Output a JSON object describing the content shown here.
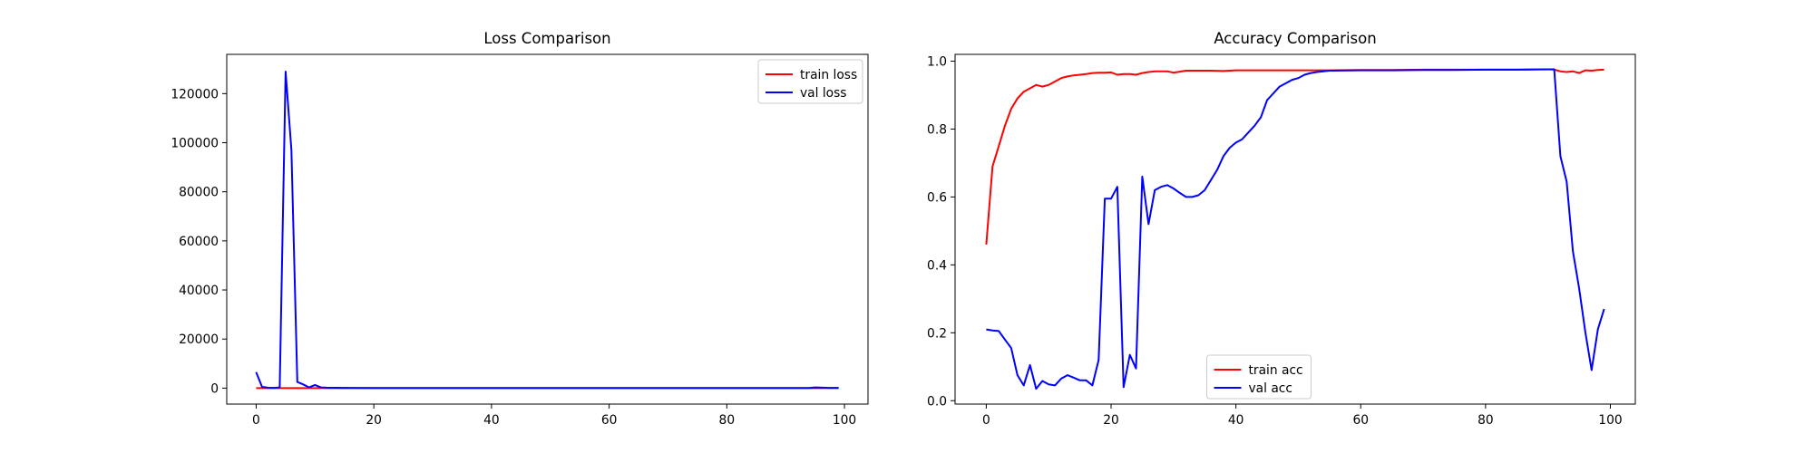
{
  "chart_data": [
    {
      "type": "line",
      "title": "Loss Comparison",
      "xlabel": "",
      "ylabel": "",
      "xlim": [
        -5,
        104
      ],
      "ylim": [
        -6500,
        136000
      ],
      "xticks": [
        0,
        20,
        40,
        60,
        80,
        100
      ],
      "yticks": [
        0,
        20000,
        40000,
        60000,
        80000,
        100000,
        120000
      ],
      "grid": false,
      "legend_position": "upper right",
      "series": [
        {
          "name": "train loss",
          "color": "#ff0000",
          "x": [
            0,
            99
          ],
          "y": [
            0,
            0
          ]
        },
        {
          "name": "val loss",
          "color": "#0000ff",
          "x": [
            0,
            1,
            2,
            3,
            4,
            5,
            6,
            7,
            8,
            9,
            10,
            11,
            12,
            15,
            20,
            30,
            40,
            50,
            60,
            70,
            80,
            90,
            93,
            94,
            95,
            97,
            99
          ],
          "y": [
            6500,
            500,
            200,
            100,
            300,
            129000,
            97000,
            2500,
            1500,
            300,
            1300,
            300,
            200,
            100,
            50,
            50,
            50,
            50,
            50,
            50,
            50,
            50,
            50,
            80,
            300,
            150,
            100
          ]
        }
      ]
    },
    {
      "type": "line",
      "title": "Accuracy Comparison",
      "xlabel": "",
      "ylabel": "",
      "xlim": [
        -5,
        104
      ],
      "ylim": [
        -0.01,
        1.02
      ],
      "xticks": [
        0,
        20,
        40,
        60,
        80,
        100
      ],
      "yticks": [
        0.0,
        0.2,
        0.4,
        0.6,
        0.8,
        1.0
      ],
      "grid": false,
      "legend_position": "lower center",
      "series": [
        {
          "name": "train acc",
          "color": "#ff0000",
          "x": [
            0,
            1,
            2,
            3,
            4,
            5,
            6,
            7,
            8,
            9,
            10,
            11,
            12,
            13,
            14,
            15,
            16,
            17,
            18,
            19,
            20,
            21,
            22,
            23,
            24,
            25,
            26,
            27,
            28,
            29,
            30,
            32,
            34,
            36,
            38,
            40,
            45,
            50,
            55,
            60,
            65,
            70,
            75,
            80,
            85,
            90,
            91,
            92,
            93,
            94,
            95,
            96,
            97,
            98,
            99
          ],
          "y": [
            0.46,
            0.69,
            0.75,
            0.81,
            0.86,
            0.89,
            0.91,
            0.92,
            0.93,
            0.925,
            0.93,
            0.94,
            0.95,
            0.955,
            0.958,
            0.96,
            0.962,
            0.965,
            0.966,
            0.966,
            0.967,
            0.96,
            0.962,
            0.962,
            0.96,
            0.965,
            0.968,
            0.97,
            0.97,
            0.97,
            0.966,
            0.972,
            0.972,
            0.972,
            0.971,
            0.973,
            0.973,
            0.973,
            0.973,
            0.974,
            0.974,
            0.975,
            0.975,
            0.975,
            0.975,
            0.976,
            0.975,
            0.97,
            0.968,
            0.97,
            0.965,
            0.973,
            0.972,
            0.974,
            0.975
          ]
        },
        {
          "name": "val acc",
          "color": "#0000ff",
          "x": [
            0,
            1,
            2,
            3,
            4,
            5,
            6,
            7,
            8,
            9,
            10,
            11,
            12,
            13,
            14,
            15,
            16,
            17,
            18,
            19,
            20,
            21,
            22,
            23,
            24,
            25,
            26,
            27,
            28,
            29,
            30,
            31,
            32,
            33,
            34,
            35,
            36,
            37,
            38,
            39,
            40,
            41,
            42,
            43,
            44,
            45,
            46,
            47,
            48,
            49,
            50,
            51,
            52,
            53,
            54,
            55,
            60,
            65,
            70,
            75,
            80,
            85,
            90,
            91,
            92,
            93,
            94,
            95,
            96,
            97,
            98,
            99
          ],
          "y": [
            0.21,
            0.207,
            0.205,
            0.18,
            0.155,
            0.075,
            0.045,
            0.105,
            0.035,
            0.058,
            0.048,
            0.045,
            0.065,
            0.075,
            0.068,
            0.06,
            0.06,
            0.045,
            0.12,
            0.595,
            0.595,
            0.63,
            0.04,
            0.135,
            0.095,
            0.66,
            0.52,
            0.62,
            0.63,
            0.635,
            0.625,
            0.612,
            0.6,
            0.6,
            0.605,
            0.62,
            0.65,
            0.68,
            0.72,
            0.745,
            0.76,
            0.77,
            0.79,
            0.81,
            0.835,
            0.885,
            0.905,
            0.925,
            0.935,
            0.945,
            0.95,
            0.96,
            0.965,
            0.968,
            0.97,
            0.972,
            0.973,
            0.973,
            0.974,
            0.974,
            0.975,
            0.975,
            0.976,
            0.976,
            0.72,
            0.645,
            0.44,
            0.33,
            0.2,
            0.09,
            0.21,
            0.27
          ]
        }
      ]
    }
  ]
}
